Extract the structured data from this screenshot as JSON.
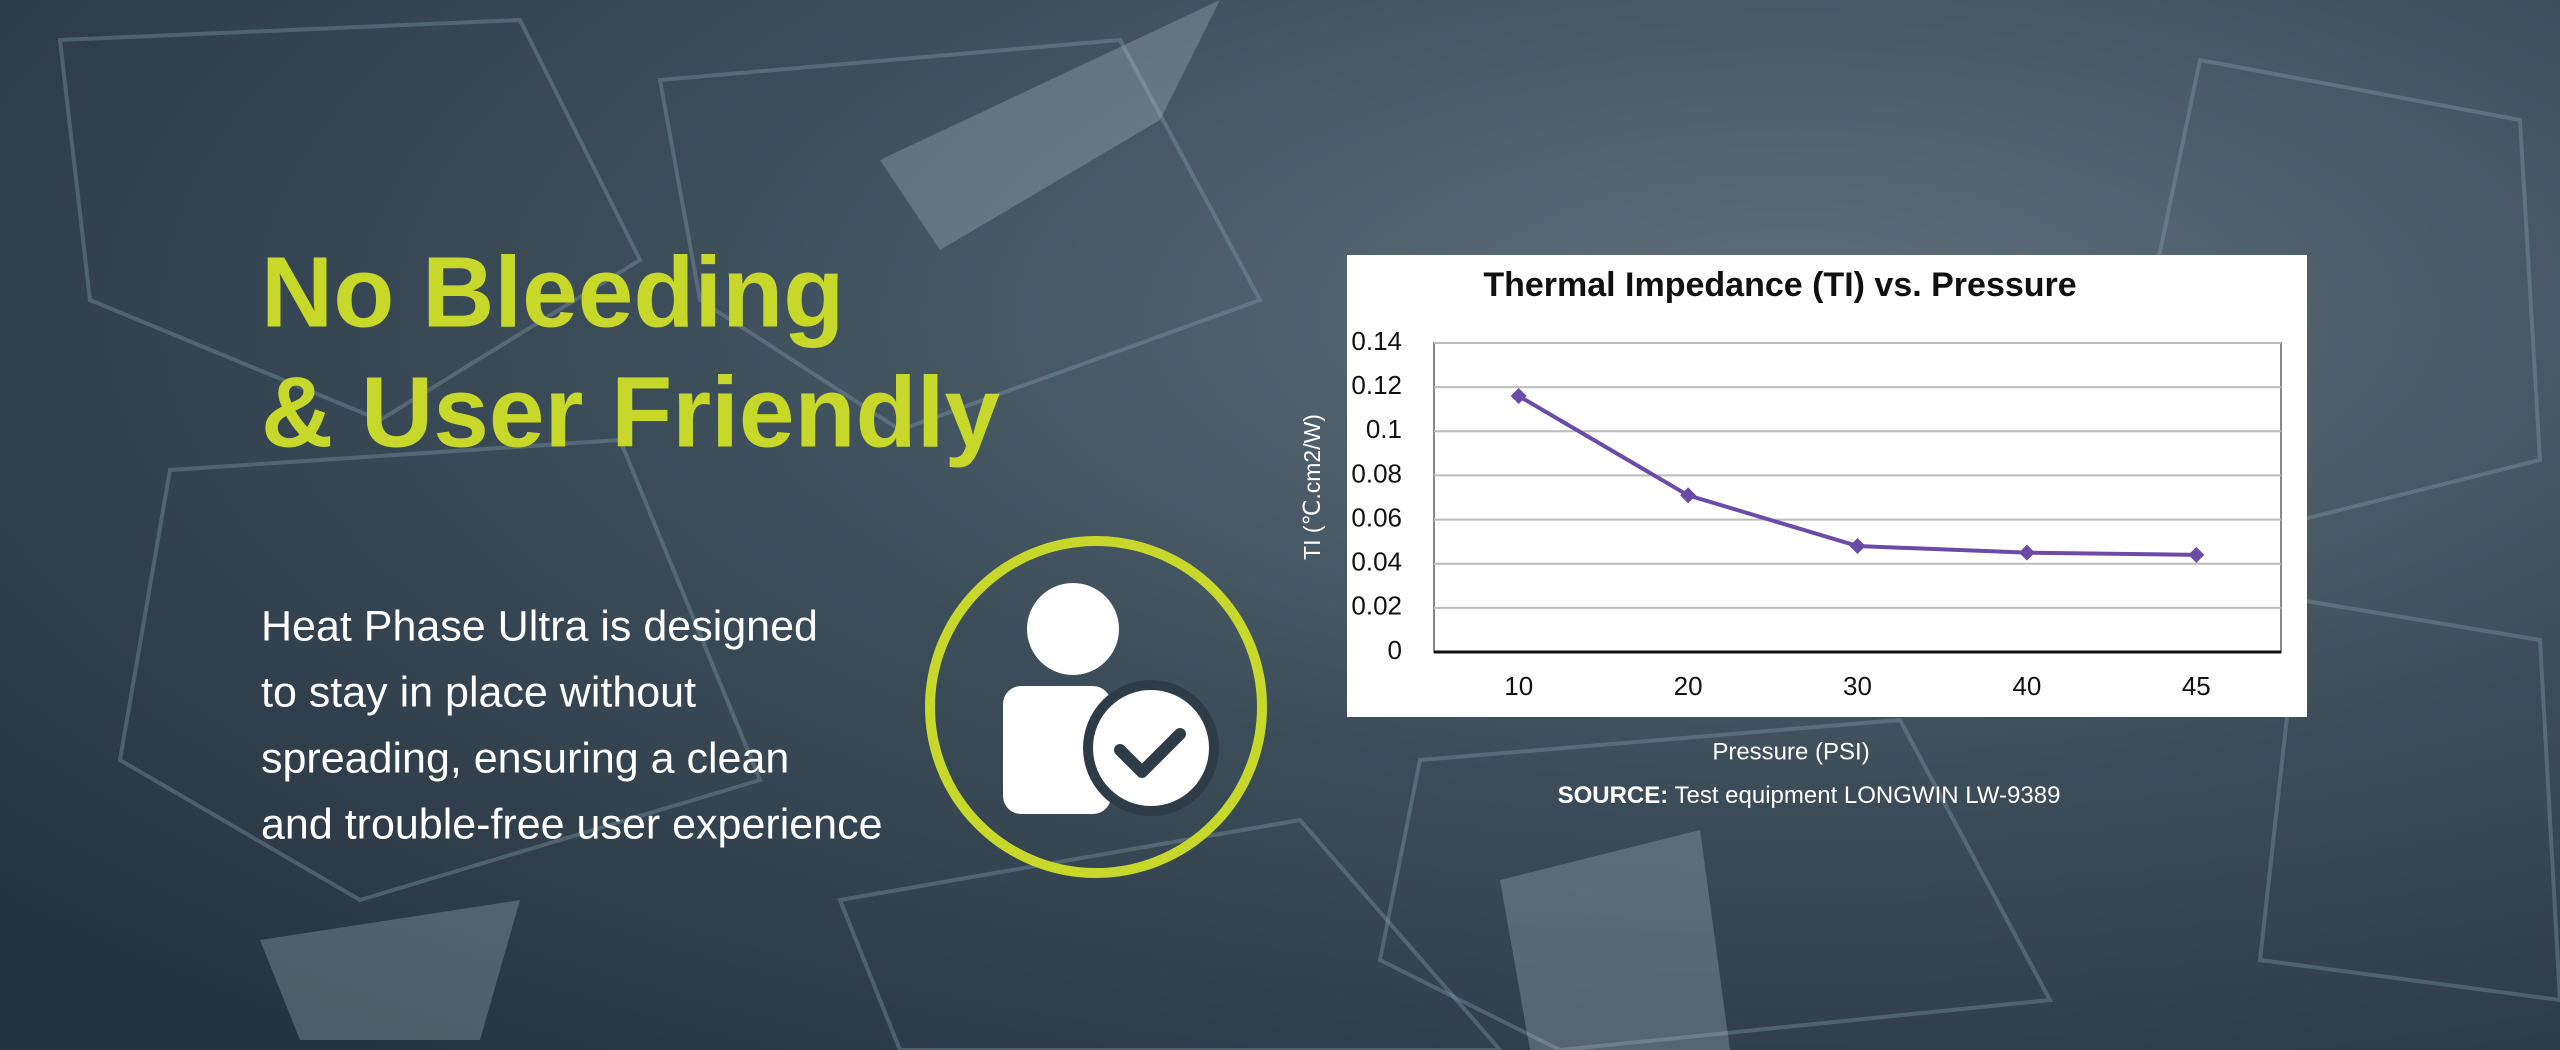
{
  "header": {
    "lines": [
      "No Bleeding",
      "& User Friendly"
    ]
  },
  "body": {
    "lines": [
      "Heat Phase Ultra is designed",
      "to stay in place without",
      "spreading, ensuring a clean",
      "and trouble-free user experience"
    ]
  },
  "chart_data": {
    "type": "line",
    "title": "Thermal Impedance (TI) vs. Pressure",
    "categories": [
      "10",
      "20",
      "30",
      "40",
      "45"
    ],
    "series": [
      {
        "name": "TI",
        "color": "#6a4ca8",
        "values": [
          0.116,
          0.071,
          0.048,
          0.045,
          0.044
        ]
      }
    ],
    "ylim": [
      0,
      0.14
    ],
    "yticks": [
      0,
      0.02,
      0.04,
      0.06,
      0.08,
      0.1,
      0.12,
      0.14
    ],
    "grid": true,
    "y_label": "TI (℃.cm2/W)",
    "x_label": "Pressure (PSI)"
  },
  "source": {
    "label": "SOURCE:",
    "text": "Test equipment LONGWIN LW-9389"
  }
}
